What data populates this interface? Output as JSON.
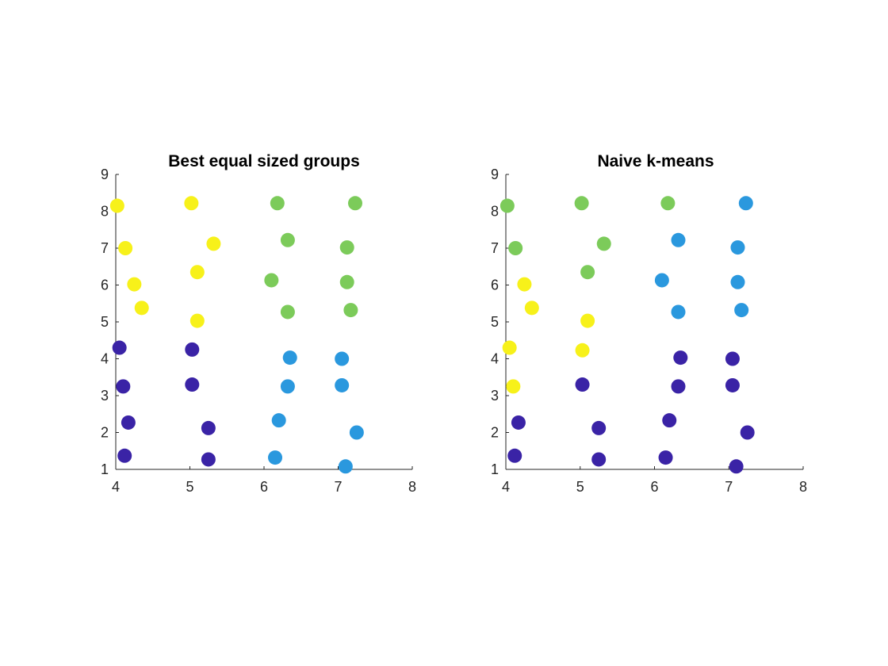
{
  "chart_data": [
    {
      "type": "scatter",
      "title": "Best equal sized groups",
      "xlabel": "",
      "ylabel": "",
      "xlim": [
        4,
        8
      ],
      "ylim": [
        1,
        9
      ],
      "xticks": [
        "4",
        "5",
        "6",
        "7",
        "8"
      ],
      "yticks": [
        "1",
        "2",
        "3",
        "4",
        "5",
        "6",
        "7",
        "8",
        "9"
      ],
      "grid": false,
      "box": false,
      "series": [
        {
          "color": "#F7F11A",
          "points": [
            [
              4.02,
              8.15
            ],
            [
              5.02,
              8.22
            ],
            [
              4.13,
              7.0
            ],
            [
              5.32,
              7.12
            ],
            [
              4.25,
              6.02
            ],
            [
              5.1,
              6.35
            ],
            [
              4.35,
              5.38
            ],
            [
              5.1,
              5.03
            ]
          ]
        },
        {
          "color": "#7CCB5A",
          "points": [
            [
              6.18,
              8.22
            ],
            [
              7.23,
              8.22
            ],
            [
              6.32,
              7.22
            ],
            [
              7.12,
              7.02
            ],
            [
              6.1,
              6.13
            ],
            [
              7.12,
              6.08
            ],
            [
              6.32,
              5.27
            ],
            [
              7.17,
              5.32
            ]
          ]
        },
        {
          "color": "#2A98DE",
          "points": [
            [
              6.35,
              4.03
            ],
            [
              7.05,
              4.0
            ],
            [
              6.32,
              3.25
            ],
            [
              7.05,
              3.28
            ],
            [
              6.2,
              2.33
            ],
            [
              7.25,
              2.0
            ],
            [
              6.15,
              1.32
            ],
            [
              7.1,
              1.08
            ]
          ]
        },
        {
          "color": "#3A23A6",
          "points": [
            [
              4.05,
              4.3
            ],
            [
              5.03,
              4.25
            ],
            [
              4.1,
              3.25
            ],
            [
              5.03,
              3.3
            ],
            [
              4.17,
              2.27
            ],
            [
              5.25,
              2.12
            ],
            [
              4.12,
              1.37
            ],
            [
              5.25,
              1.27
            ]
          ]
        }
      ]
    },
    {
      "type": "scatter",
      "title": "Naive k-means",
      "xlabel": "",
      "ylabel": "",
      "xlim": [
        4,
        8
      ],
      "ylim": [
        1,
        9
      ],
      "xticks": [
        "4",
        "5",
        "6",
        "7",
        "8"
      ],
      "yticks": [
        "1",
        "2",
        "3",
        "4",
        "5",
        "6",
        "7",
        "8",
        "9"
      ],
      "grid": false,
      "box": false,
      "series": [
        {
          "color": "#7CCB5A",
          "points": [
            [
              4.02,
              8.15
            ],
            [
              5.02,
              8.22
            ],
            [
              6.18,
              8.22
            ],
            [
              4.13,
              7.0
            ],
            [
              5.32,
              7.12
            ],
            [
              5.1,
              6.35
            ]
          ]
        },
        {
          "color": "#2A98DE",
          "points": [
            [
              7.23,
              8.22
            ],
            [
              6.32,
              7.22
            ],
            [
              7.12,
              7.02
            ],
            [
              6.1,
              6.13
            ],
            [
              7.12,
              6.08
            ],
            [
              6.32,
              5.27
            ],
            [
              7.17,
              5.32
            ]
          ]
        },
        {
          "color": "#F7F11A",
          "points": [
            [
              4.25,
              6.02
            ],
            [
              4.35,
              5.38
            ],
            [
              5.1,
              5.03
            ],
            [
              4.05,
              4.3
            ],
            [
              5.03,
              4.23
            ],
            [
              4.1,
              3.25
            ]
          ]
        },
        {
          "color": "#3A23A6",
          "points": [
            [
              6.35,
              4.03
            ],
            [
              7.05,
              4.0
            ],
            [
              5.03,
              3.3
            ],
            [
              6.32,
              3.25
            ],
            [
              7.05,
              3.28
            ],
            [
              4.17,
              2.27
            ],
            [
              5.25,
              2.12
            ],
            [
              6.2,
              2.33
            ],
            [
              7.25,
              2.0
            ],
            [
              4.12,
              1.37
            ],
            [
              5.25,
              1.27
            ],
            [
              6.15,
              1.32
            ],
            [
              7.1,
              1.08
            ]
          ]
        }
      ]
    }
  ]
}
